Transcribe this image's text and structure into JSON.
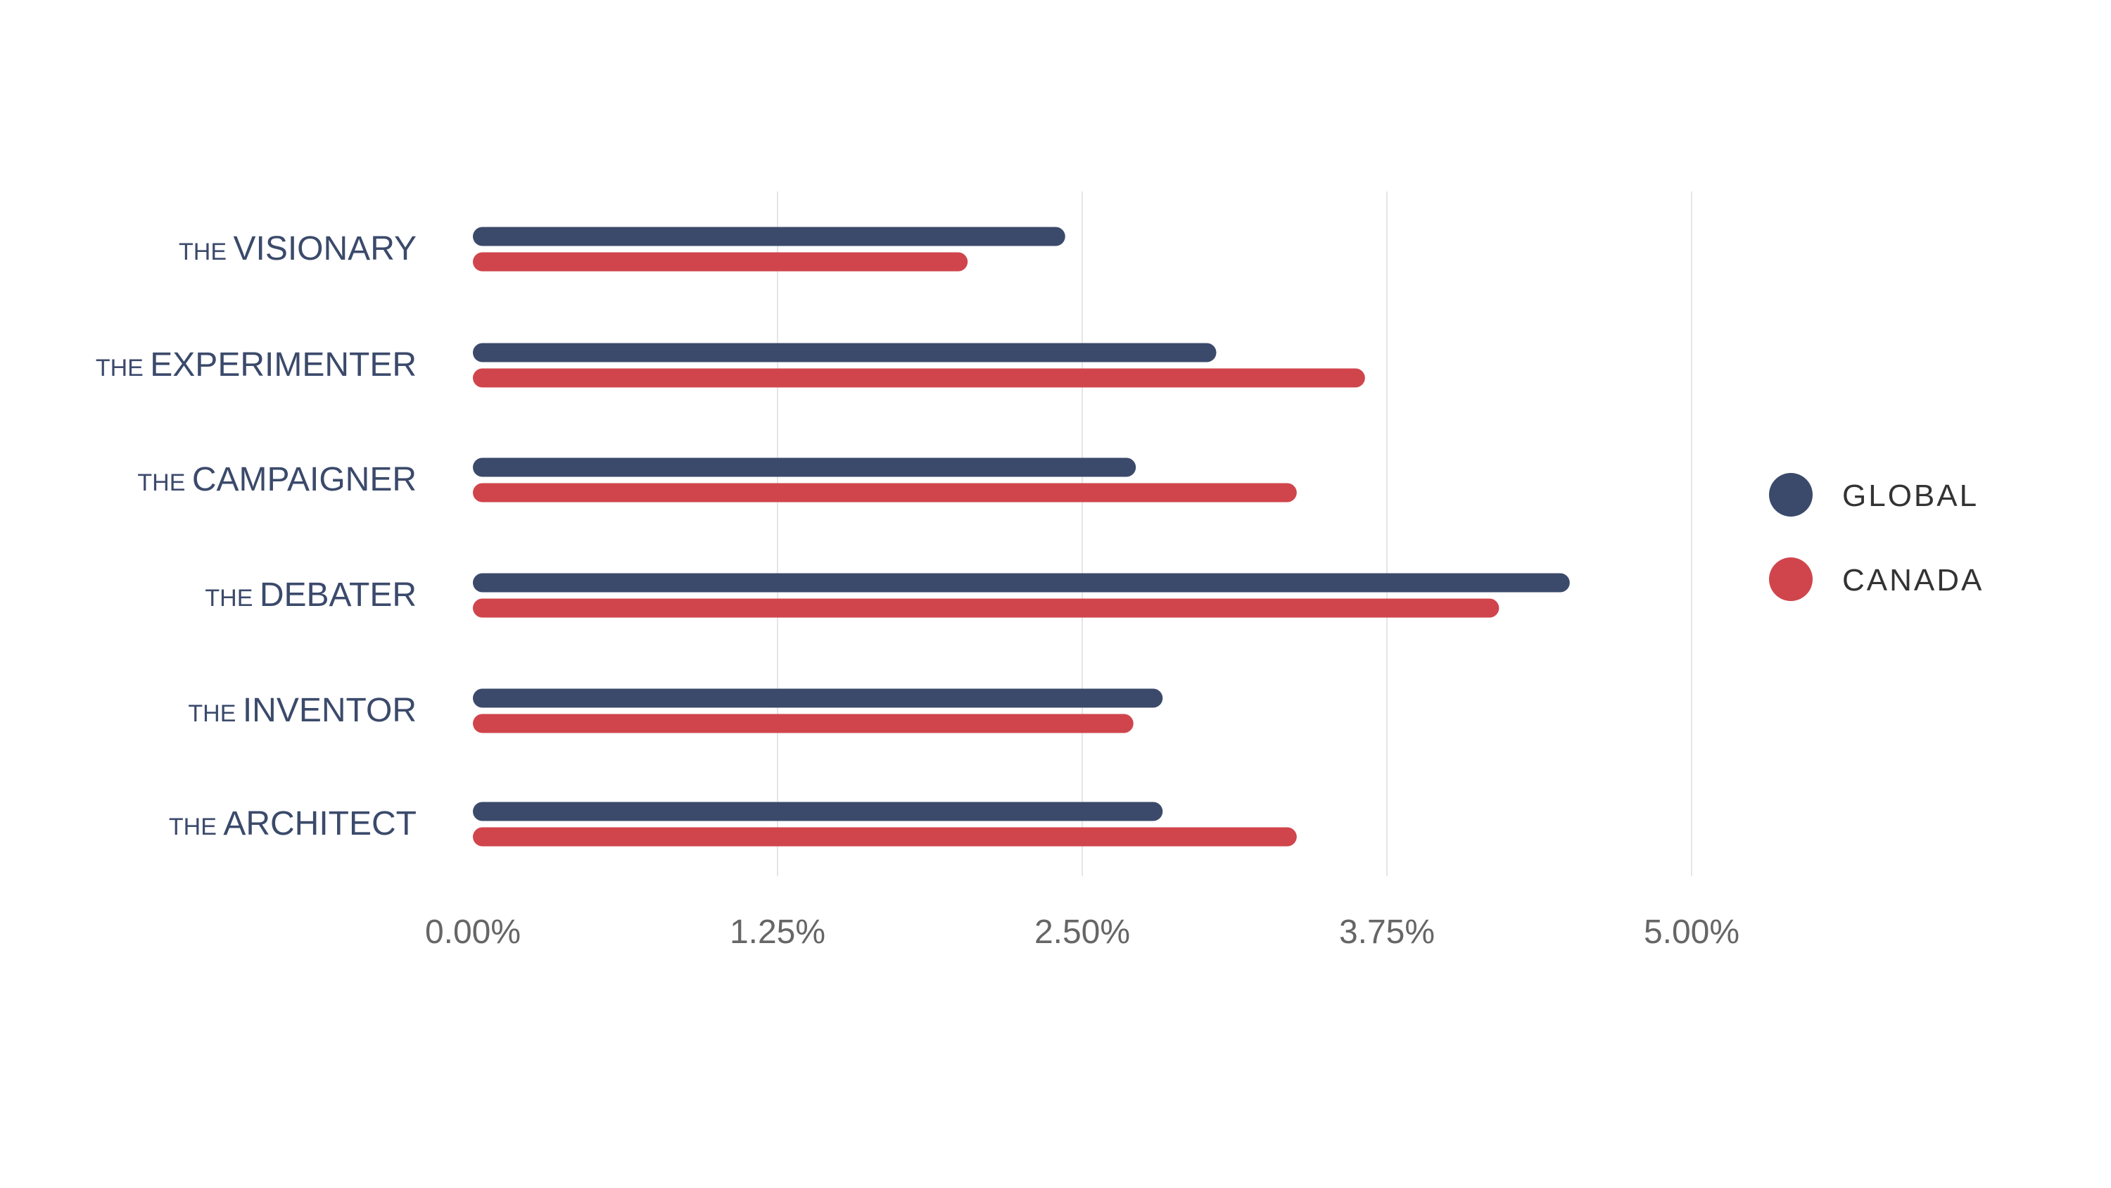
{
  "colors": {
    "global": "#3b4a6b",
    "canada": "#d0454c",
    "label_text": "#3b4a6b",
    "tick_text": "#666666",
    "legend_text": "#333333",
    "grid": "#e6e6e6"
  },
  "chart_data": {
    "type": "bar",
    "orientation": "horizontal",
    "title": "",
    "xlabel": "",
    "ylabel": "",
    "categories": [
      {
        "prefix": "THE",
        "name": "VISIONARY"
      },
      {
        "prefix": "THE",
        "name": "EXPERIMENTER"
      },
      {
        "prefix": "THE",
        "name": "CAMPAIGNER"
      },
      {
        "prefix": "THE",
        "name": "DEBATER"
      },
      {
        "prefix": "THE",
        "name": "INVENTOR"
      },
      {
        "prefix": "THE",
        "name": "ARCHITECT"
      }
    ],
    "series": [
      {
        "name": "GLOBAL",
        "color_key": "global",
        "values": [
          2.43,
          3.05,
          2.72,
          4.5,
          2.83,
          2.83
        ]
      },
      {
        "name": "CANADA",
        "color_key": "canada",
        "values": [
          2.03,
          3.66,
          3.38,
          4.21,
          2.71,
          3.38
        ]
      }
    ],
    "xlim": [
      0,
      5.0
    ],
    "xticks": [
      0,
      1.25,
      2.5,
      3.75,
      5.0
    ],
    "xtick_labels": [
      "0.00%",
      "1.25%",
      "2.50%",
      "3.75%",
      "5.00%"
    ],
    "grid": true,
    "legend_position": "right"
  }
}
